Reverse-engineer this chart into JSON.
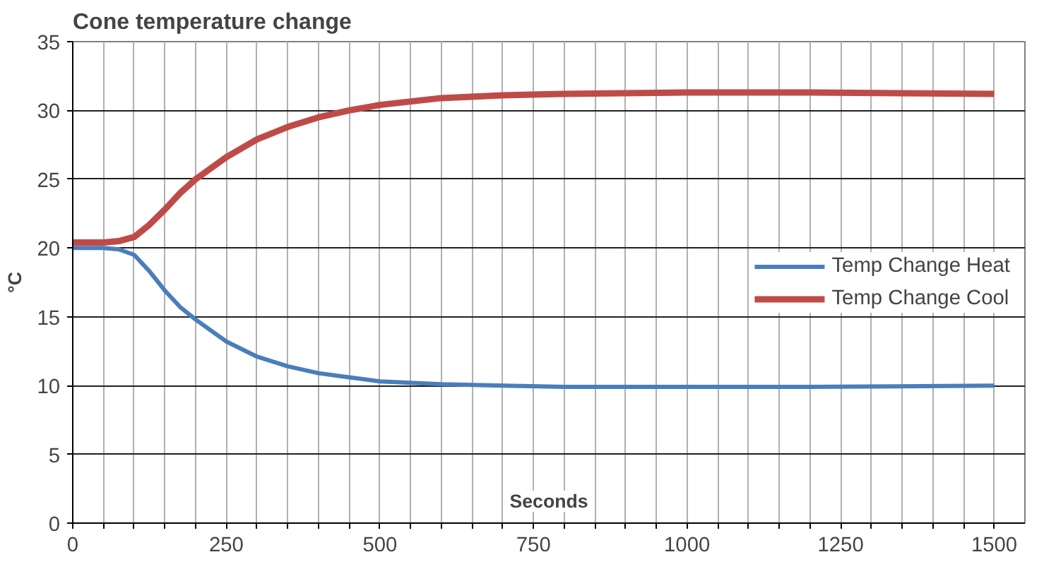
{
  "chart_data": {
    "type": "line",
    "title": "Cone temperature change",
    "xlabel": "Seconds",
    "ylabel": "°C",
    "x": [
      0,
      25,
      50,
      75,
      100,
      125,
      150,
      175,
      200,
      250,
      300,
      350,
      400,
      450,
      500,
      600,
      700,
      800,
      1000,
      1200,
      1500
    ],
    "series": [
      {
        "name": "Temp Change Heat",
        "color": "#4a7ebb",
        "values": [
          20,
          20,
          20,
          19.9,
          19.5,
          18.3,
          16.9,
          15.7,
          14.8,
          13.2,
          12.1,
          11.4,
          10.9,
          10.6,
          10.3,
          10.1,
          10.0,
          9.9,
          9.9,
          9.9,
          10.0
        ]
      },
      {
        "name": "Temp Change Cool",
        "color": "#be4b48",
        "values": [
          20.4,
          20.4,
          20.4,
          20.5,
          20.8,
          21.7,
          22.8,
          24.0,
          25.0,
          26.6,
          27.9,
          28.8,
          29.5,
          30.0,
          30.4,
          30.9,
          31.1,
          31.2,
          31.3,
          31.3,
          31.2
        ]
      }
    ],
    "xlim": [
      0,
      1550
    ],
    "ylim": [
      0,
      35
    ],
    "xticks": [
      0,
      {
        "value": 50,
        "label": null
      },
      {
        "value": 100,
        "label": null
      },
      {
        "value": 150,
        "label": null
      },
      {
        "value": 200,
        "label": null
      },
      250,
      {
        "value": 300,
        "label": null
      },
      {
        "value": 350,
        "label": null
      },
      {
        "value": 400,
        "label": null
      },
      {
        "value": 450,
        "label": null
      },
      500,
      {
        "value": 550,
        "label": null
      },
      {
        "value": 600,
        "label": null
      },
      {
        "value": 650,
        "label": null
      },
      {
        "value": 700,
        "label": null
      },
      750,
      {
        "value": 800,
        "label": null
      },
      {
        "value": 850,
        "label": null
      },
      {
        "value": 900,
        "label": null
      },
      {
        "value": 950,
        "label": null
      },
      1000,
      {
        "value": 1050,
        "label": null
      },
      {
        "value": 1100,
        "label": null
      },
      {
        "value": 1150,
        "label": null
      },
      {
        "value": 1200,
        "label": null
      },
      1250,
      {
        "value": 1300,
        "label": null
      },
      {
        "value": 1350,
        "label": null
      },
      {
        "value": 1400,
        "label": null
      },
      {
        "value": 1450,
        "label": null
      },
      1500
    ],
    "yticks": [
      0,
      5,
      10,
      15,
      20,
      25,
      30,
      35
    ],
    "grid": true,
    "legend": "right",
    "marker": "none",
    "line_style": "solid"
  }
}
